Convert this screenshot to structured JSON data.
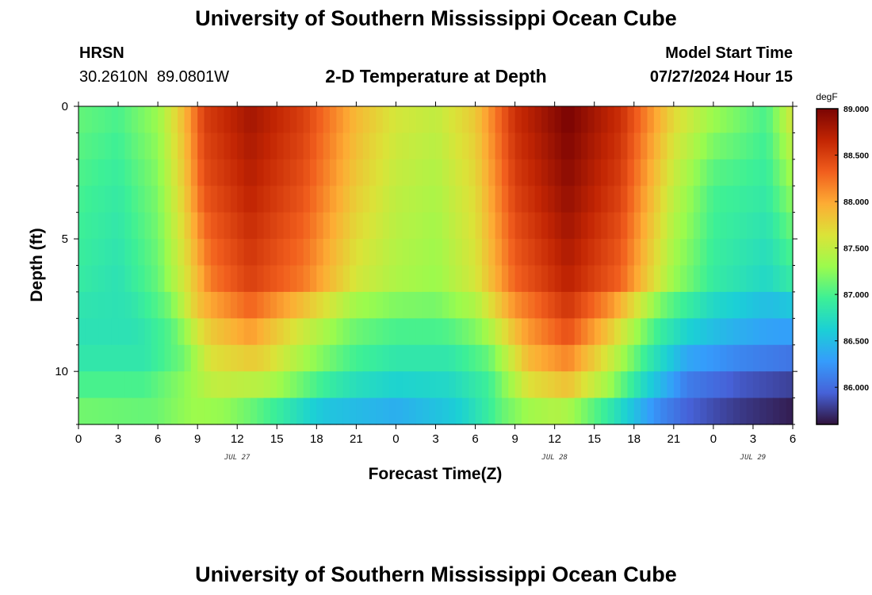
{
  "page_title": "University of Southern Mississippi Ocean Cube",
  "footer_title": "University of Southern Mississippi Ocean Cube",
  "station": {
    "name": "HRSN",
    "coordinates": "30.2610N  89.0801W"
  },
  "model": {
    "label": "Model Start Time",
    "start_time": "07/27/2024 Hour 15"
  },
  "chart_data": {
    "type": "heatmap",
    "title": "2-D Temperature at Depth",
    "xlabel": "Forecast Time(Z)",
    "ylabel": "Depth (ft)",
    "x_unit": "forecast hours from Jul 27 00Z",
    "x_range": [
      0,
      54
    ],
    "x_ticks": [
      {
        "hour": 0,
        "label": "0"
      },
      {
        "hour": 3,
        "label": "3"
      },
      {
        "hour": 6,
        "label": "6"
      },
      {
        "hour": 9,
        "label": "9"
      },
      {
        "hour": 12,
        "label": "12"
      },
      {
        "hour": 15,
        "label": "15"
      },
      {
        "hour": 18,
        "label": "18"
      },
      {
        "hour": 21,
        "label": "21"
      },
      {
        "hour": 24,
        "label": "0"
      },
      {
        "hour": 27,
        "label": "3"
      },
      {
        "hour": 30,
        "label": "6"
      },
      {
        "hour": 33,
        "label": "9"
      },
      {
        "hour": 36,
        "label": "12"
      },
      {
        "hour": 39,
        "label": "15"
      },
      {
        "hour": 42,
        "label": "18"
      },
      {
        "hour": 45,
        "label": "21"
      },
      {
        "hour": 48,
        "label": "0"
      },
      {
        "hour": 51,
        "label": "3"
      },
      {
        "hour": 54,
        "label": "6"
      }
    ],
    "date_labels": [
      {
        "hour": 12,
        "label": "JUL 27"
      },
      {
        "hour": 36,
        "label": "JUL 28"
      },
      {
        "hour": 51,
        "label": "JUL 29"
      }
    ],
    "y_range": [
      0,
      12
    ],
    "y_ticks": [
      {
        "value": 0,
        "label": "0"
      },
      {
        "value": 5,
        "label": "5"
      },
      {
        "value": 10,
        "label": "10"
      }
    ],
    "depth_levels_ft": [
      0.5,
      1.5,
      2.5,
      3.5,
      4.5,
      5.5,
      6.5,
      7.5,
      8.5,
      9.5,
      10.5,
      11.5
    ],
    "hours_per_cell": 0.5,
    "colorbar": {
      "unit": "degF",
      "min": 85.6,
      "max": 89.0,
      "ticks": [
        "89.000",
        "88.500",
        "88.000",
        "87.500",
        "87.000",
        "86.500",
        "86.000"
      ],
      "tick_values": [
        89.0,
        88.5,
        88.0,
        87.5,
        87.0,
        86.5,
        86.0
      ]
    },
    "temperature_degF": [
      {
        "depth_ft": 0.5,
        "values": [
          {
            "hour": 0,
            "value": 87.1
          },
          {
            "hour": 3,
            "value": 87.0
          },
          {
            "hour": 6,
            "value": 87.3
          },
          {
            "hour": 8,
            "value": 87.9
          },
          {
            "hour": 9.5,
            "value": 88.5
          },
          {
            "hour": 13,
            "value": 88.8
          },
          {
            "hour": 17,
            "value": 88.5
          },
          {
            "hour": 21,
            "value": 87.9
          },
          {
            "hour": 24,
            "value": 87.6
          },
          {
            "hour": 27,
            "value": 87.5
          },
          {
            "hour": 30,
            "value": 87.8
          },
          {
            "hour": 33,
            "value": 88.6
          },
          {
            "hour": 37,
            "value": 89.0
          },
          {
            "hour": 41,
            "value": 88.6
          },
          {
            "hour": 45,
            "value": 87.7
          },
          {
            "hour": 48,
            "value": 87.3
          },
          {
            "hour": 52,
            "value": 87.0
          },
          {
            "hour": 54,
            "value": 87.6
          }
        ]
      },
      {
        "depth_ft": 3.0,
        "values": [
          {
            "hour": 0,
            "value": 87.0
          },
          {
            "hour": 3,
            "value": 86.9
          },
          {
            "hour": 6,
            "value": 87.2
          },
          {
            "hour": 8,
            "value": 87.8
          },
          {
            "hour": 9.5,
            "value": 88.4
          },
          {
            "hour": 13,
            "value": 88.7
          },
          {
            "hour": 17,
            "value": 88.4
          },
          {
            "hour": 21,
            "value": 87.8
          },
          {
            "hour": 24,
            "value": 87.5
          },
          {
            "hour": 27,
            "value": 87.4
          },
          {
            "hour": 30,
            "value": 87.7
          },
          {
            "hour": 33,
            "value": 88.5
          },
          {
            "hour": 37,
            "value": 88.9
          },
          {
            "hour": 41,
            "value": 88.5
          },
          {
            "hour": 45,
            "value": 87.5
          },
          {
            "hour": 48,
            "value": 87.0
          },
          {
            "hour": 52,
            "value": 86.9
          },
          {
            "hour": 54,
            "value": 87.3
          }
        ]
      },
      {
        "depth_ft": 6.5,
        "values": [
          {
            "hour": 0,
            "value": 86.9
          },
          {
            "hour": 3,
            "value": 86.8
          },
          {
            "hour": 6,
            "value": 87.1
          },
          {
            "hour": 8,
            "value": 87.6
          },
          {
            "hour": 10,
            "value": 88.2
          },
          {
            "hour": 13,
            "value": 88.5
          },
          {
            "hour": 17,
            "value": 88.2
          },
          {
            "hour": 21,
            "value": 87.6
          },
          {
            "hour": 24,
            "value": 87.4
          },
          {
            "hour": 27,
            "value": 87.3
          },
          {
            "hour": 30,
            "value": 87.6
          },
          {
            "hour": 33,
            "value": 88.3
          },
          {
            "hour": 37,
            "value": 88.7
          },
          {
            "hour": 41,
            "value": 88.3
          },
          {
            "hour": 45,
            "value": 87.3
          },
          {
            "hour": 48,
            "value": 86.9
          },
          {
            "hour": 52,
            "value": 86.7
          },
          {
            "hour": 54,
            "value": 86.9
          }
        ]
      },
      {
        "depth_ft": 8.0,
        "values": [
          {
            "hour": 0,
            "value": 86.8
          },
          {
            "hour": 4,
            "value": 86.8
          },
          {
            "hour": 7,
            "value": 87.1
          },
          {
            "hour": 9,
            "value": 87.8
          },
          {
            "hour": 13,
            "value": 88.2
          },
          {
            "hour": 17,
            "value": 87.7
          },
          {
            "hour": 21,
            "value": 87.2
          },
          {
            "hour": 24,
            "value": 87.1
          },
          {
            "hour": 27,
            "value": 87.1
          },
          {
            "hour": 30,
            "value": 87.3
          },
          {
            "hour": 33,
            "value": 88.0
          },
          {
            "hour": 37,
            "value": 88.5
          },
          {
            "hour": 40,
            "value": 88.0
          },
          {
            "hour": 44,
            "value": 87.0
          },
          {
            "hour": 48,
            "value": 86.6
          },
          {
            "hour": 52,
            "value": 86.4
          },
          {
            "hour": 54,
            "value": 86.4
          }
        ]
      },
      {
        "depth_ft": 9.0,
        "values": [
          {
            "hour": 0,
            "value": 86.8
          },
          {
            "hour": 5,
            "value": 86.8
          },
          {
            "hour": 8,
            "value": 87.1
          },
          {
            "hour": 10,
            "value": 87.7
          },
          {
            "hour": 13,
            "value": 87.9
          },
          {
            "hour": 17,
            "value": 87.4
          },
          {
            "hour": 20,
            "value": 87.1
          },
          {
            "hour": 24,
            "value": 86.9
          },
          {
            "hour": 28,
            "value": 86.9
          },
          {
            "hour": 31,
            "value": 87.2
          },
          {
            "hour": 34,
            "value": 88.0
          },
          {
            "hour": 37,
            "value": 88.3
          },
          {
            "hour": 40,
            "value": 87.7
          },
          {
            "hour": 43,
            "value": 87.0
          },
          {
            "hour": 46,
            "value": 86.5
          },
          {
            "hour": 50,
            "value": 86.3
          },
          {
            "hour": 54,
            "value": 86.2
          }
        ]
      },
      {
        "depth_ft": 10.0,
        "values": [
          {
            "hour": 0,
            "value": 86.9
          },
          {
            "hour": 5,
            "value": 86.9
          },
          {
            "hour": 8,
            "value": 87.2
          },
          {
            "hour": 10,
            "value": 87.6
          },
          {
            "hour": 14,
            "value": 87.7
          },
          {
            "hour": 18,
            "value": 87.2
          },
          {
            "hour": 21,
            "value": 86.9
          },
          {
            "hour": 24,
            "value": 86.8
          },
          {
            "hour": 28,
            "value": 86.8
          },
          {
            "hour": 31,
            "value": 87.0
          },
          {
            "hour": 34,
            "value": 87.8
          },
          {
            "hour": 37,
            "value": 88.0
          },
          {
            "hour": 40,
            "value": 87.5
          },
          {
            "hour": 43,
            "value": 86.8
          },
          {
            "hour": 46,
            "value": 86.2
          },
          {
            "hour": 50,
            "value": 86.0
          },
          {
            "hour": 54,
            "value": 85.9
          }
        ]
      },
      {
        "depth_ft": 11.0,
        "values": [
          {
            "hour": 0,
            "value": 87.1
          },
          {
            "hour": 5,
            "value": 87.1
          },
          {
            "hour": 8,
            "value": 87.3
          },
          {
            "hour": 11,
            "value": 87.4
          },
          {
            "hour": 15,
            "value": 87.1
          },
          {
            "hour": 19,
            "value": 86.7
          },
          {
            "hour": 24,
            "value": 86.5
          },
          {
            "hour": 28,
            "value": 86.6
          },
          {
            "hour": 31,
            "value": 86.9
          },
          {
            "hour": 34,
            "value": 87.5
          },
          {
            "hour": 37,
            "value": 87.7
          },
          {
            "hour": 40,
            "value": 87.2
          },
          {
            "hour": 43,
            "value": 86.5
          },
          {
            "hour": 46,
            "value": 86.0
          },
          {
            "hour": 50,
            "value": 85.8
          },
          {
            "hour": 54,
            "value": 85.7
          }
        ]
      },
      {
        "depth_ft": 12.0,
        "values": [
          {
            "hour": 0,
            "value": 87.2
          },
          {
            "hour": 6,
            "value": 87.1
          },
          {
            "hour": 9,
            "value": 87.3
          },
          {
            "hour": 13,
            "value": 87.0
          },
          {
            "hour": 18,
            "value": 86.4
          },
          {
            "hour": 24,
            "value": 86.3
          },
          {
            "hour": 29,
            "value": 86.6
          },
          {
            "hour": 32,
            "value": 87.1
          },
          {
            "hour": 36,
            "value": 87.2
          },
          {
            "hour": 40,
            "value": 86.6
          },
          {
            "hour": 44,
            "value": 86.0
          },
          {
            "hour": 48,
            "value": 85.8
          },
          {
            "hour": 54,
            "value": 85.6
          }
        ]
      }
    ]
  }
}
